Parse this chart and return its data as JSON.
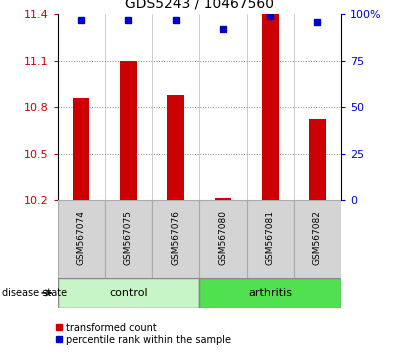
{
  "title": "GDS5243 / 10467560",
  "samples": [
    "GSM567074",
    "GSM567075",
    "GSM567076",
    "GSM567080",
    "GSM567081",
    "GSM567082"
  ],
  "bar_values": [
    10.86,
    11.1,
    10.88,
    10.21,
    11.4,
    10.72
  ],
  "percentile_values": [
    97,
    97,
    97,
    92,
    99,
    96
  ],
  "y_min": 10.2,
  "y_max": 11.4,
  "y_ticks": [
    10.2,
    10.5,
    10.8,
    11.1,
    11.4
  ],
  "right_y_ticks": [
    0,
    25,
    50,
    75,
    100
  ],
  "right_y_tick_labels": [
    "0",
    "25",
    "50",
    "75",
    "100%"
  ],
  "groups": [
    {
      "label": "control",
      "start": 0,
      "end": 3,
      "color": "#c8f5c8"
    },
    {
      "label": "arthritis",
      "start": 3,
      "end": 6,
      "color": "#50e050"
    }
  ],
  "bar_color": "#cc0000",
  "percentile_color": "#0000cc",
  "bar_width": 0.35,
  "group_label": "disease state",
  "legend_bar_label": "transformed count",
  "legend_dot_label": "percentile rank within the sample",
  "grid_color": "#888888",
  "label_fontsize": 8,
  "title_fontsize": 10,
  "sample_label_fontsize": 6.5
}
